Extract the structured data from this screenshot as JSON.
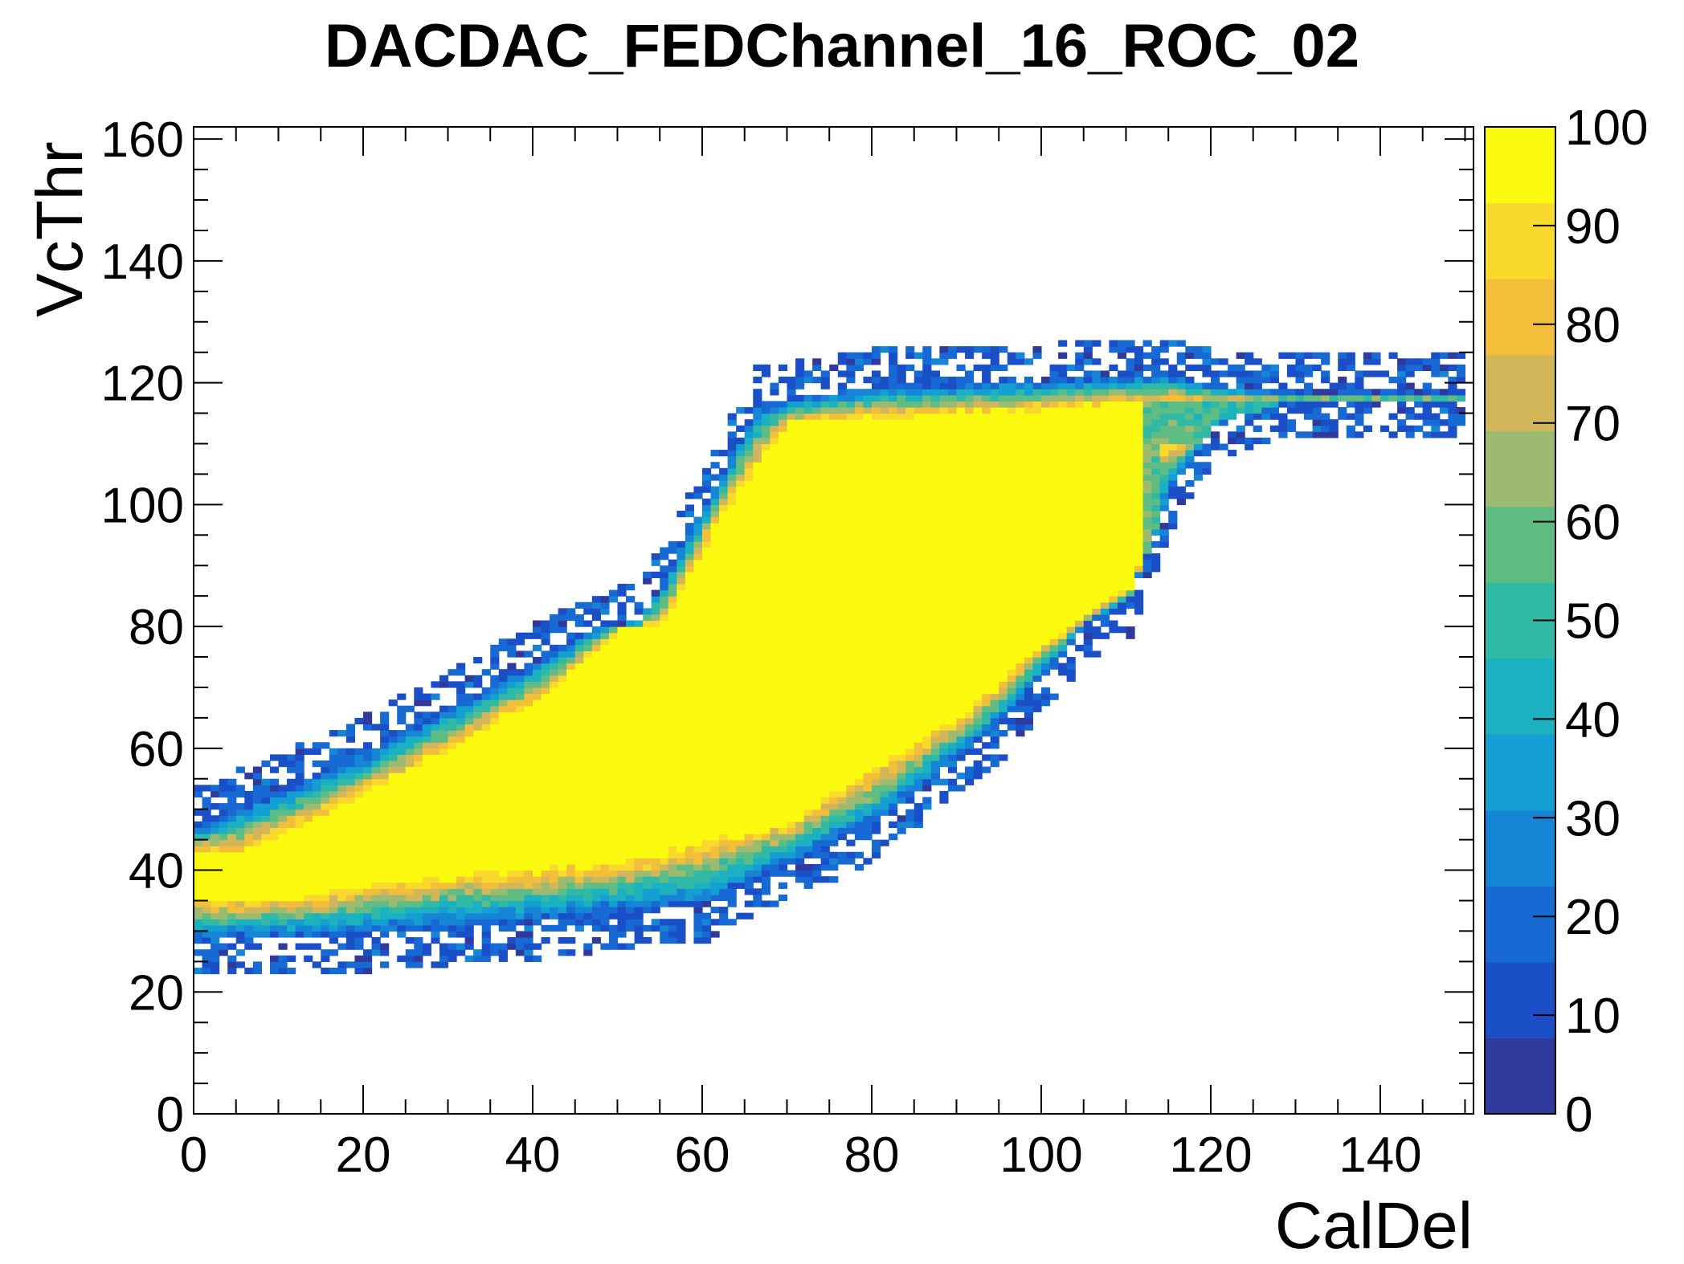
{
  "chart_data": {
    "type": "heatmap",
    "title": "DACDAC_FEDChannel_16_ROC_02",
    "xlabel": "CalDel",
    "ylabel": "VcThr",
    "xlim": [
      0,
      151
    ],
    "ylim": [
      0,
      162
    ],
    "x_ticks": [
      0,
      20,
      40,
      60,
      80,
      100,
      120,
      140
    ],
    "y_ticks": [
      0,
      20,
      40,
      60,
      80,
      100,
      120,
      140,
      160
    ],
    "x_tick_labels": [
      "0",
      "20",
      "40",
      "60",
      "80",
      "100",
      "120",
      "140"
    ],
    "y_tick_labels": [
      "0",
      "20",
      "40",
      "60",
      "80",
      "100",
      "120",
      "140",
      "160"
    ],
    "colorbar": {
      "min": 0,
      "max": 100,
      "ticks": [
        0,
        10,
        20,
        30,
        40,
        50,
        60,
        70,
        80,
        90,
        100
      ],
      "tick_labels": [
        "0",
        "10",
        "20",
        "30",
        "40",
        "50",
        "60",
        "70",
        "80",
        "90",
        "100"
      ],
      "colors": [
        "#2f3a9c",
        "#1a4fc8",
        "#1769d4",
        "#1685d6",
        "#149fd2",
        "#1bb1c1",
        "#30b9a5",
        "#5fbd84",
        "#9dbb70",
        "#d4b65a",
        "#f3bf3a",
        "#f9d92c",
        "#fbfa0e"
      ]
    },
    "bin_width": {
      "x": 1,
      "y": 1
    },
    "description_of_values": "efficiency in each (CalDel, VcThr) bin, 0-100",
    "efficient_region": {
      "comment": "approximate contour of the yellow (~100) plateau in data units",
      "upper_edge": [
        [
          0,
          47
        ],
        [
          20,
          59
        ],
        [
          40,
          74
        ],
        [
          48,
          80
        ],
        [
          52,
          80
        ],
        [
          60,
          100
        ],
        [
          66,
          116
        ],
        [
          80,
          119
        ],
        [
          100,
          120
        ],
        [
          115,
          121
        ],
        [
          120,
          119
        ],
        [
          130,
          118
        ],
        [
          150,
          118
        ]
      ],
      "lower_edge": [
        [
          0,
          28
        ],
        [
          20,
          29
        ],
        [
          40,
          31
        ],
        [
          60,
          34
        ],
        [
          80,
          47
        ],
        [
          95,
          64
        ],
        [
          105,
          80
        ],
        [
          110,
          84
        ],
        [
          115,
          102
        ],
        [
          120,
          113
        ],
        [
          130,
          117
        ],
        [
          150,
          117
        ]
      ],
      "plateau_upper": [
        [
          5,
          42
        ],
        [
          20,
          52
        ],
        [
          40,
          67
        ],
        [
          50,
          79
        ],
        [
          55,
          80
        ],
        [
          62,
          98
        ],
        [
          70,
          113
        ],
        [
          100,
          115
        ],
        [
          110,
          116
        ]
      ],
      "plateau_lower": [
        [
          10,
          35
        ],
        [
          30,
          39
        ],
        [
          50,
          41
        ],
        [
          70,
          48
        ],
        [
          90,
          65
        ],
        [
          100,
          77
        ],
        [
          110,
          86
        ],
        [
          113,
          96
        ],
        [
          114,
          110
        ]
      ]
    },
    "grid": false,
    "legend": "colorbar-right"
  }
}
